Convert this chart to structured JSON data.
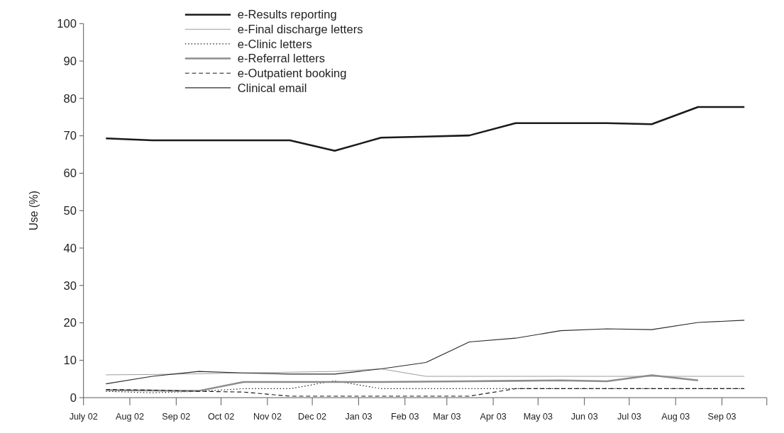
{
  "chart_data": {
    "type": "line",
    "ylabel": "Use (%)",
    "x": [
      "2002-07-16",
      "2002-08-16",
      "2002-09-16",
      "2002-10-16",
      "2002-11-16",
      "2002-12-16",
      "2003-01-16",
      "2003-02-15",
      "2003-03-16",
      "2003-04-16",
      "2003-05-16",
      "2003-06-16",
      "2003-07-16",
      "2003-08-16",
      "2003-09-16"
    ],
    "xlim": [
      "2002-07-01",
      "2003-10-01"
    ],
    "xticks": [
      {
        "value": "2002-07-01",
        "label": "July 02"
      },
      {
        "value": "2002-08-01",
        "label": "Aug 02"
      },
      {
        "value": "2002-09-01",
        "label": "Sep 02"
      },
      {
        "value": "2002-10-01",
        "label": "Oct 02"
      },
      {
        "value": "2002-11-01",
        "label": "Nov 02"
      },
      {
        "value": "2002-12-01",
        "label": "Dec 02"
      },
      {
        "value": "2003-01-01",
        "label": "Jan 03"
      },
      {
        "value": "2003-02-01",
        "label": "Feb 03"
      },
      {
        "value": "2003-03-01",
        "label": "Mar 03"
      },
      {
        "value": "2003-04-01",
        "label": "Apr 03"
      },
      {
        "value": "2003-05-01",
        "label": "May 03"
      },
      {
        "value": "2003-06-01",
        "label": "Jun 03"
      },
      {
        "value": "2003-07-01",
        "label": "Jul 03"
      },
      {
        "value": "2003-08-01",
        "label": "Aug 03"
      },
      {
        "value": "2003-09-01",
        "label": "Sep 03"
      },
      {
        "value": "2003-10-01",
        "label": null
      }
    ],
    "ylim": [
      0,
      100
    ],
    "yticks": [
      0,
      10,
      20,
      30,
      40,
      50,
      60,
      70,
      80,
      90,
      100
    ],
    "grid": false,
    "legend": "top",
    "marker": "none",
    "series": [
      {
        "name": "e-Results reporting",
        "color": "#1a1a1a",
        "line_style": "solid",
        "values": [
          69.3,
          68.8,
          68.8,
          68.8,
          68.8,
          66.0,
          69.5,
          69.8,
          70.1,
          73.4,
          73.4,
          73.4,
          73.1,
          77.7,
          77.7
        ]
      },
      {
        "name": "e-Final discharge letters",
        "color": "#9a9a9a",
        "line_style": "solid",
        "values": [
          6.1,
          6.2,
          6.4,
          6.6,
          6.8,
          7.0,
          7.7,
          5.7,
          5.7,
          5.7,
          5.7,
          5.7,
          5.7,
          5.7,
          5.7
        ]
      },
      {
        "name": "e-Clinic letters",
        "color": "#1a1a1a",
        "line_style": "dotted",
        "values": [
          1.7,
          1.3,
          1.7,
          2.4,
          2.4,
          4.5,
          2.4,
          2.4,
          2.4,
          2.4,
          2.4,
          2.4,
          2.4,
          2.4,
          2.4
        ]
      },
      {
        "name": "e-Referral letters",
        "color": "#8c8c8c",
        "line_style": "solid",
        "values": [
          2.0,
          1.9,
          1.8,
          4.2,
          4.2,
          4.2,
          4.2,
          4.3,
          4.4,
          4.5,
          4.6,
          4.4,
          6.0,
          4.6,
          null
        ]
      },
      {
        "name": "e-Outpatient booking",
        "color": "#1a1a1a",
        "line_style": "dashed",
        "values": [
          2.2,
          2.0,
          1.7,
          1.5,
          0.4,
          0.4,
          0.4,
          0.4,
          0.4,
          2.4,
          2.4,
          2.4,
          2.4,
          2.4,
          2.4
        ]
      },
      {
        "name": "Clinical email",
        "color": "#2a2a2a",
        "line_style": "solid",
        "values": [
          3.7,
          5.7,
          7.0,
          6.6,
          6.3,
          6.3,
          7.7,
          9.4,
          14.9,
          15.9,
          17.9,
          18.4,
          18.2,
          20.1,
          20.7
        ]
      }
    ]
  }
}
